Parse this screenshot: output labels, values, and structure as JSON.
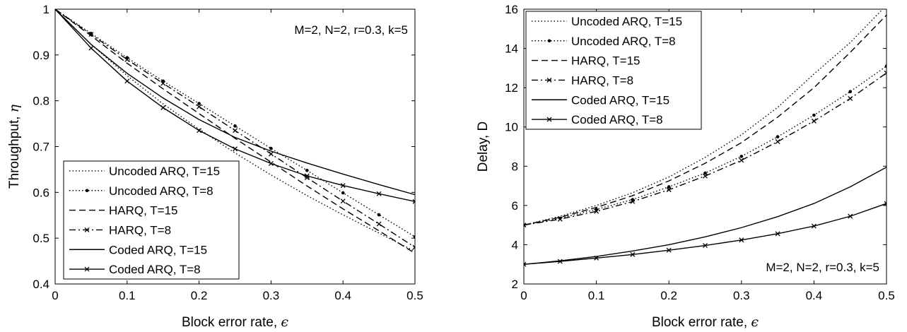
{
  "chart_data": [
    {
      "type": "line",
      "xlabel": "Block error rate, ",
      "xlabel_symbol": "ϵ",
      "ylabel": "Throughput, ",
      "ylabel_symbol": "η",
      "xlim": [
        0,
        0.5
      ],
      "ylim": [
        0.4,
        1
      ],
      "xticks": [
        "0",
        "0.1",
        "0.2",
        "0.3",
        "0.4",
        "0.5"
      ],
      "yticks": [
        "0.4",
        "0.5",
        "0.6",
        "0.7",
        "0.8",
        "0.9",
        "1"
      ],
      "annotation": "M=2, N=2, r=0.3, k=5",
      "legend_position": "bottom-left",
      "grid": false,
      "series": [
        {
          "name": "Uncoded ARQ, T=15",
          "style": "dotted",
          "marker": "none",
          "x": [
            0,
            0.05,
            0.1,
            0.15,
            0.2,
            0.25,
            0.3,
            0.35,
            0.4,
            0.45,
            0.5
          ],
          "y": [
            1,
            0.923,
            0.855,
            0.793,
            0.738,
            0.686,
            0.638,
            0.593,
            0.551,
            0.511,
            0.471
          ]
        },
        {
          "name": "Uncoded ARQ, T=8",
          "style": "dotted",
          "marker": "dot",
          "x": [
            0,
            0.05,
            0.1,
            0.15,
            0.2,
            0.25,
            0.3,
            0.35,
            0.4,
            0.45,
            0.5
          ],
          "y": [
            1,
            0.947,
            0.894,
            0.843,
            0.794,
            0.745,
            0.696,
            0.648,
            0.599,
            0.551,
            0.503
          ]
        },
        {
          "name": "HARQ, T=15",
          "style": "dashed",
          "marker": "none",
          "x": [
            0,
            0.05,
            0.1,
            0.15,
            0.2,
            0.25,
            0.3,
            0.35,
            0.4,
            0.45,
            0.5
          ],
          "y": [
            1,
            0.942,
            0.882,
            0.826,
            0.772,
            0.718,
            0.666,
            0.614,
            0.564,
            0.516,
            0.467
          ]
        },
        {
          "name": "HARQ, T=8",
          "style": "dashdot",
          "marker": "x",
          "x": [
            0,
            0.05,
            0.1,
            0.15,
            0.2,
            0.25,
            0.3,
            0.35,
            0.4,
            0.45,
            0.5
          ],
          "y": [
            1,
            0.945,
            0.89,
            0.838,
            0.787,
            0.735,
            0.684,
            0.632,
            0.581,
            0.531,
            0.48
          ]
        },
        {
          "name": "Coded ARQ, T=15",
          "style": "solid",
          "marker": "none",
          "x": [
            0,
            0.05,
            0.1,
            0.15,
            0.2,
            0.25,
            0.3,
            0.35,
            0.4,
            0.45,
            0.5
          ],
          "y": [
            1,
            0.923,
            0.86,
            0.806,
            0.759,
            0.72,
            0.69,
            0.664,
            0.64,
            0.617,
            0.595
          ]
        },
        {
          "name": "Coded ARQ, T=8",
          "style": "solid",
          "marker": "x",
          "x": [
            0,
            0.05,
            0.1,
            0.15,
            0.2,
            0.25,
            0.3,
            0.35,
            0.4,
            0.45,
            0.5
          ],
          "y": [
            1,
            0.915,
            0.843,
            0.785,
            0.735,
            0.695,
            0.663,
            0.636,
            0.615,
            0.597,
            0.58
          ]
        }
      ]
    },
    {
      "type": "line",
      "xlabel": "Block error rate, ",
      "xlabel_symbol": "ϵ",
      "ylabel": "Delay, D",
      "xlim": [
        0,
        0.5
      ],
      "ylim": [
        2,
        16
      ],
      "xticks": [
        "0",
        "0.1",
        "0.2",
        "0.3",
        "0.4",
        "0.5"
      ],
      "yticks": [
        "2",
        "4",
        "6",
        "8",
        "10",
        "12",
        "14",
        "16"
      ],
      "annotation": "M=2, N=2, r=0.3, k=5",
      "legend_position": "top-left",
      "grid": false,
      "series": [
        {
          "name": "Uncoded ARQ, T=15",
          "style": "dotted",
          "marker": "none",
          "x": [
            0,
            0.05,
            0.1,
            0.15,
            0.2,
            0.25,
            0.3,
            0.35,
            0.4,
            0.45,
            0.5
          ],
          "y": [
            5,
            5.45,
            6.0,
            6.65,
            7.45,
            8.45,
            9.6,
            11.0,
            12.7,
            14.3,
            16.2
          ]
        },
        {
          "name": "Uncoded ARQ, T=8",
          "style": "dotted",
          "marker": "dot",
          "x": [
            0,
            0.05,
            0.1,
            0.15,
            0.2,
            0.25,
            0.3,
            0.35,
            0.4,
            0.45,
            0.5
          ],
          "y": [
            5,
            5.35,
            5.8,
            6.3,
            6.95,
            7.65,
            8.5,
            9.5,
            10.6,
            11.8,
            13.1
          ]
        },
        {
          "name": "HARQ, T=15",
          "style": "dashed",
          "marker": "none",
          "x": [
            0,
            0.05,
            0.1,
            0.15,
            0.2,
            0.25,
            0.3,
            0.35,
            0.4,
            0.45,
            0.5
          ],
          "y": [
            5,
            5.4,
            5.9,
            6.5,
            7.25,
            8.15,
            9.2,
            10.5,
            12.0,
            13.8,
            15.7
          ]
        },
        {
          "name": "HARQ, T=8",
          "style": "dashdot",
          "marker": "x",
          "x": [
            0,
            0.05,
            0.1,
            0.15,
            0.2,
            0.25,
            0.3,
            0.35,
            0.4,
            0.45,
            0.5
          ],
          "y": [
            5,
            5.3,
            5.7,
            6.2,
            6.8,
            7.5,
            8.3,
            9.25,
            10.3,
            11.45,
            12.75
          ]
        },
        {
          "name": "Coded ARQ, T=15",
          "style": "solid",
          "marker": "none",
          "x": [
            0,
            0.05,
            0.1,
            0.15,
            0.2,
            0.25,
            0.3,
            0.35,
            0.4,
            0.45,
            0.5
          ],
          "y": [
            3,
            3.18,
            3.4,
            3.68,
            4.0,
            4.4,
            4.87,
            5.43,
            6.1,
            6.95,
            7.95
          ]
        },
        {
          "name": "Coded ARQ, T=8",
          "style": "solid",
          "marker": "x",
          "x": [
            0,
            0.05,
            0.1,
            0.15,
            0.2,
            0.25,
            0.3,
            0.35,
            0.4,
            0.45,
            0.5
          ],
          "y": [
            3,
            3.15,
            3.32,
            3.5,
            3.72,
            3.96,
            4.24,
            4.56,
            4.95,
            5.45,
            6.1
          ]
        }
      ]
    }
  ]
}
